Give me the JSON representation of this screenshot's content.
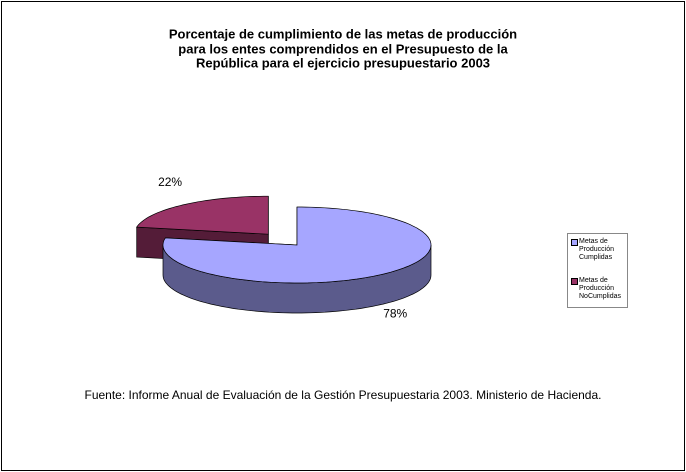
{
  "chart_data": {
    "type": "pie3d",
    "title": [
      "Porcentaje de cumplimiento de las metas de producción",
      "para los entes comprendidos en el Presupuesto de la",
      "República para el ejercicio presupuestario 2003"
    ],
    "categories": [
      "Metas de Producción Cumplidas",
      "Metas de Producción NoCumplidas"
    ],
    "values": [
      78,
      22
    ],
    "value_labels": [
      "78%",
      "22%"
    ],
    "colors": [
      "#a6a6ff",
      "#993366"
    ],
    "legend": "right",
    "source": "Fuente: Informe Anual de Evaluación de la Gestión Presupuestaria 2003. Ministerio de Hacienda."
  }
}
